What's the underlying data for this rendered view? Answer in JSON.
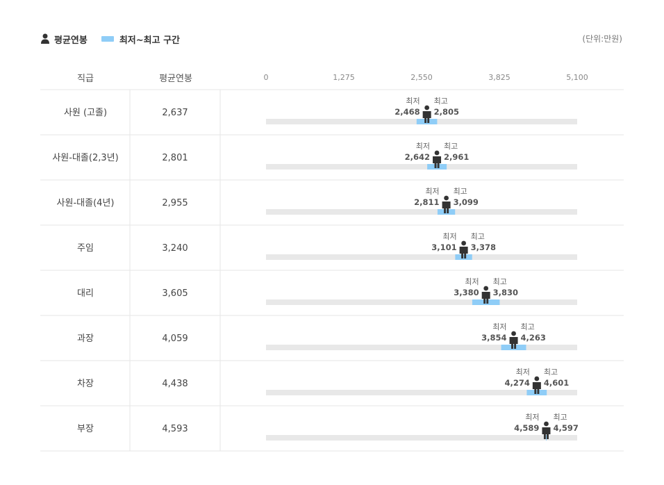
{
  "legend": {
    "avg_label": "평균연봉",
    "range_label": "최저~최고 구간"
  },
  "unit": "(단위:만원)",
  "colors": {
    "range": "#8fcdf7",
    "track": "#e8e8e8",
    "person": "#333333",
    "line": "#e6e6e6"
  },
  "table": {
    "rank_header": "직급",
    "avg_header": "평균연봉"
  },
  "chart_data": {
    "type": "range-bar",
    "xlim": [
      0,
      5100
    ],
    "ticks": [
      "0",
      "1,275",
      "2,550",
      "3,825",
      "5,100"
    ],
    "min_caption": "최저",
    "max_caption": "최고",
    "rows": [
      {
        "rank": "사원 (고졸)",
        "avg_label": "2,637",
        "avg": 2637,
        "min": 2468,
        "max": 2805,
        "min_label": "2,468",
        "max_label": "2,805"
      },
      {
        "rank": "사원-대졸(2,3년)",
        "avg_label": "2,801",
        "avg": 2801,
        "min": 2642,
        "max": 2961,
        "min_label": "2,642",
        "max_label": "2,961"
      },
      {
        "rank": "사원-대졸(4년)",
        "avg_label": "2,955",
        "avg": 2955,
        "min": 2811,
        "max": 3099,
        "min_label": "2,811",
        "max_label": "3,099"
      },
      {
        "rank": "주임",
        "avg_label": "3,240",
        "avg": 3240,
        "min": 3101,
        "max": 3378,
        "min_label": "3,101",
        "max_label": "3,378"
      },
      {
        "rank": "대리",
        "avg_label": "3,605",
        "avg": 3605,
        "min": 3380,
        "max": 3830,
        "min_label": "3,380",
        "max_label": "3,830"
      },
      {
        "rank": "과장",
        "avg_label": "4,059",
        "avg": 4059,
        "min": 3854,
        "max": 4263,
        "min_label": "3,854",
        "max_label": "4,263"
      },
      {
        "rank": "차장",
        "avg_label": "4,438",
        "avg": 4438,
        "min": 4274,
        "max": 4601,
        "min_label": "4,274",
        "max_label": "4,601"
      },
      {
        "rank": "부장",
        "avg_label": "4,593",
        "avg": 4593,
        "min": 4589,
        "max": 4597,
        "min_label": "4,589",
        "max_label": "4,597"
      }
    ]
  }
}
